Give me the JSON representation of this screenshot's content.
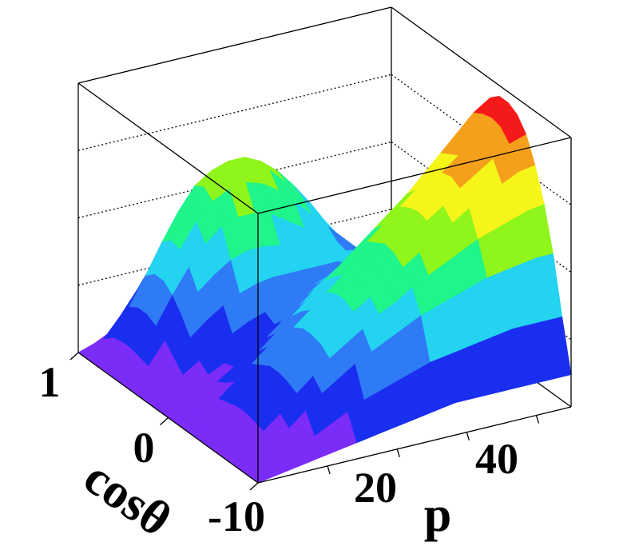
{
  "chart_data": {
    "type": "surface",
    "title": "",
    "xlabel": "p",
    "ylabel": "cosθ",
    "zlabel": "",
    "x_ticks": [
      "20",
      "40"
    ],
    "y_ticks": [
      "1",
      "0"
    ],
    "corner_tick": "-10",
    "xlim": [
      10,
      55
    ],
    "ylim": [
      -1,
      1
    ],
    "zlim": [
      0,
      1
    ],
    "grid": true,
    "colormap": [
      "#7b2cf7",
      "#1a2ef0",
      "#2f7bf5",
      "#23d3f0",
      "#1ff58a",
      "#8ff51a",
      "#f5f51a",
      "#f5a01a",
      "#f51a1a"
    ],
    "surface_rows": [
      {
        "cos": -1.0,
        "z": [
          0.0,
          0.01,
          0.02,
          0.03,
          0.04,
          0.05,
          0.06,
          0.07,
          0.08,
          0.09,
          0.1,
          0.11,
          0.12,
          0.12,
          0.12,
          0.12,
          0.12,
          0.12,
          0.12,
          0.12
        ]
      },
      {
        "cos": -0.9,
        "z": [
          0.0,
          0.02,
          0.04,
          0.06,
          0.09,
          0.12,
          0.15,
          0.18,
          0.2,
          0.22,
          0.24,
          0.26,
          0.27,
          0.28,
          0.29,
          0.3,
          0.31,
          0.31,
          0.31,
          0.31
        ]
      },
      {
        "cos": -0.8,
        "z": [
          0.0,
          0.03,
          0.07,
          0.11,
          0.16,
          0.21,
          0.25,
          0.29,
          0.32,
          0.35,
          0.38,
          0.41,
          0.43,
          0.45,
          0.47,
          0.49,
          0.5,
          0.51,
          0.52,
          0.52
        ]
      },
      {
        "cos": -0.7,
        "z": [
          0.0,
          0.04,
          0.09,
          0.14,
          0.2,
          0.25,
          0.3,
          0.34,
          0.38,
          0.42,
          0.45,
          0.49,
          0.52,
          0.55,
          0.58,
          0.61,
          0.63,
          0.65,
          0.67,
          0.68
        ]
      },
      {
        "cos": -0.6,
        "z": [
          0.0,
          0.05,
          0.1,
          0.16,
          0.22,
          0.28,
          0.33,
          0.38,
          0.42,
          0.46,
          0.5,
          0.54,
          0.58,
          0.62,
          0.66,
          0.7,
          0.73,
          0.76,
          0.79,
          0.8
        ]
      },
      {
        "cos": -0.5,
        "z": [
          0.0,
          0.05,
          0.11,
          0.17,
          0.23,
          0.29,
          0.34,
          0.39,
          0.44,
          0.48,
          0.52,
          0.57,
          0.61,
          0.66,
          0.7,
          0.75,
          0.79,
          0.83,
          0.87,
          0.89
        ]
      },
      {
        "cos": -0.4,
        "z": [
          0.0,
          0.05,
          0.11,
          0.17,
          0.23,
          0.29,
          0.34,
          0.39,
          0.44,
          0.48,
          0.53,
          0.58,
          0.62,
          0.67,
          0.72,
          0.77,
          0.82,
          0.86,
          0.91,
          0.94
        ]
      },
      {
        "cos": -0.3,
        "z": [
          0.0,
          0.05,
          0.1,
          0.16,
          0.21,
          0.27,
          0.32,
          0.37,
          0.42,
          0.47,
          0.52,
          0.56,
          0.61,
          0.66,
          0.71,
          0.76,
          0.81,
          0.86,
          0.92,
          0.96
        ]
      },
      {
        "cos": -0.2,
        "z": [
          0.0,
          0.04,
          0.09,
          0.14,
          0.19,
          0.24,
          0.29,
          0.34,
          0.39,
          0.44,
          0.49,
          0.54,
          0.59,
          0.64,
          0.69,
          0.74,
          0.79,
          0.85,
          0.91,
          0.96
        ]
      },
      {
        "cos": -0.1,
        "z": [
          0.0,
          0.03,
          0.07,
          0.11,
          0.16,
          0.2,
          0.25,
          0.3,
          0.35,
          0.4,
          0.45,
          0.5,
          0.55,
          0.6,
          0.65,
          0.71,
          0.77,
          0.83,
          0.89,
          0.93
        ]
      },
      {
        "cos": 0.0,
        "z": [
          0.0,
          0.03,
          0.06,
          0.09,
          0.13,
          0.17,
          0.21,
          0.26,
          0.3,
          0.35,
          0.39,
          0.44,
          0.49,
          0.54,
          0.59,
          0.64,
          0.7,
          0.76,
          0.81,
          0.84
        ]
      },
      {
        "cos": 0.1,
        "z": [
          0.0,
          0.03,
          0.06,
          0.09,
          0.12,
          0.15,
          0.18,
          0.22,
          0.26,
          0.3,
          0.34,
          0.38,
          0.42,
          0.46,
          0.51,
          0.56,
          0.61,
          0.65,
          0.69,
          0.71
        ]
      },
      {
        "cos": 0.2,
        "z": [
          0.0,
          0.04,
          0.08,
          0.12,
          0.16,
          0.19,
          0.22,
          0.24,
          0.26,
          0.28,
          0.3,
          0.32,
          0.35,
          0.38,
          0.42,
          0.46,
          0.49,
          0.52,
          0.54,
          0.55
        ]
      },
      {
        "cos": 0.3,
        "z": [
          0.0,
          0.06,
          0.12,
          0.18,
          0.23,
          0.27,
          0.3,
          0.32,
          0.33,
          0.33,
          0.33,
          0.33,
          0.33,
          0.34,
          0.35,
          0.37,
          0.38,
          0.39,
          0.39,
          0.4
        ]
      },
      {
        "cos": 0.4,
        "z": [
          0.0,
          0.08,
          0.16,
          0.24,
          0.31,
          0.36,
          0.4,
          0.42,
          0.42,
          0.41,
          0.39,
          0.37,
          0.35,
          0.33,
          0.32,
          0.31,
          0.3,
          0.29,
          0.28,
          0.28
        ]
      },
      {
        "cos": 0.5,
        "z": [
          0.0,
          0.09,
          0.19,
          0.29,
          0.38,
          0.45,
          0.5,
          0.52,
          0.52,
          0.5,
          0.46,
          0.42,
          0.38,
          0.34,
          0.3,
          0.27,
          0.24,
          0.21,
          0.19,
          0.18
        ]
      },
      {
        "cos": 0.6,
        "z": [
          0.0,
          0.1,
          0.21,
          0.32,
          0.42,
          0.51,
          0.57,
          0.6,
          0.61,
          0.59,
          0.55,
          0.49,
          0.43,
          0.37,
          0.31,
          0.25,
          0.2,
          0.16,
          0.13,
          0.11
        ]
      },
      {
        "cos": 0.7,
        "z": [
          0.0,
          0.1,
          0.21,
          0.32,
          0.43,
          0.53,
          0.6,
          0.64,
          0.65,
          0.64,
          0.6,
          0.54,
          0.47,
          0.39,
          0.31,
          0.24,
          0.18,
          0.13,
          0.09,
          0.07
        ]
      },
      {
        "cos": 0.8,
        "z": [
          0.0,
          0.09,
          0.19,
          0.29,
          0.4,
          0.5,
          0.58,
          0.62,
          0.64,
          0.64,
          0.61,
          0.56,
          0.49,
          0.41,
          0.32,
          0.24,
          0.17,
          0.11,
          0.07,
          0.05
        ]
      },
      {
        "cos": 0.9,
        "z": [
          0.0,
          0.06,
          0.13,
          0.21,
          0.3,
          0.39,
          0.46,
          0.51,
          0.54,
          0.55,
          0.54,
          0.51,
          0.46,
          0.39,
          0.31,
          0.23,
          0.16,
          0.1,
          0.06,
          0.04
        ]
      },
      {
        "cos": 1.0,
        "z": [
          0.0,
          0.02,
          0.05,
          0.09,
          0.14,
          0.19,
          0.24,
          0.28,
          0.31,
          0.33,
          0.34,
          0.33,
          0.31,
          0.27,
          0.22,
          0.17,
          0.12,
          0.08,
          0.05,
          0.03
        ]
      }
    ]
  }
}
